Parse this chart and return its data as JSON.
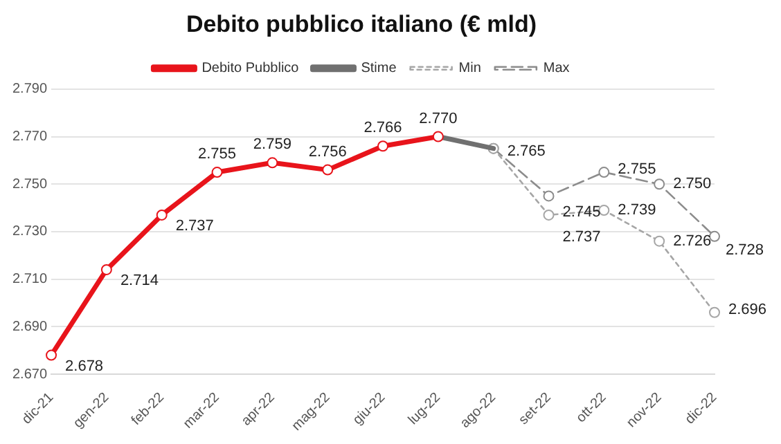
{
  "chart_data": {
    "type": "line",
    "title": "Debito pubblico italiano (€ mld)",
    "categories": [
      "dic-21",
      "gen-22",
      "feb-22",
      "mar-22",
      "apr-22",
      "mag-22",
      "giu-22",
      "lug-22",
      "ago-22",
      "set-22",
      "ott-22",
      "nov-22",
      "dic-22"
    ],
    "ylim": [
      2670,
      2790
    ],
    "yticks": [
      {
        "value": 2670,
        "label": "2.670"
      },
      {
        "value": 2690,
        "label": "2.690"
      },
      {
        "value": 2710,
        "label": "2.710"
      },
      {
        "value": 2730,
        "label": "2.730"
      },
      {
        "value": 2750,
        "label": "2.750"
      },
      {
        "value": 2770,
        "label": "2.770"
      },
      {
        "value": 2790,
        "label": "2.790"
      }
    ],
    "grid": "y",
    "legend": "top",
    "series": [
      {
        "name": "Debito Pubblico",
        "color": "#e8141b",
        "marker": "circle",
        "line_style": "solid",
        "values": [
          2678,
          2714,
          2737,
          2755,
          2759,
          2756,
          2766,
          2770,
          null,
          null,
          null,
          null,
          null
        ],
        "value_labels": [
          "2.678",
          "2.714",
          "2.737",
          "2.755",
          "2.759",
          "2.756",
          "2.766",
          "2.770",
          null,
          null,
          null,
          null,
          null
        ]
      },
      {
        "name": "Stime",
        "color": "#707070",
        "marker": "none",
        "line_style": "solid",
        "values": [
          null,
          null,
          null,
          null,
          null,
          null,
          null,
          2770,
          2765,
          null,
          null,
          null,
          null
        ],
        "value_labels": [
          null,
          null,
          null,
          null,
          null,
          null,
          null,
          null,
          "2.765",
          null,
          null,
          null,
          null
        ]
      },
      {
        "name": "Min",
        "color": "#a6a6a6",
        "marker": "circle",
        "line_style": "dotted",
        "values": [
          null,
          null,
          null,
          null,
          null,
          null,
          null,
          null,
          2765,
          2737,
          2739,
          2726,
          2696
        ],
        "value_labels": [
          null,
          null,
          null,
          null,
          null,
          null,
          null,
          null,
          null,
          "2.737",
          "2.739",
          "2.726",
          "2.696"
        ]
      },
      {
        "name": "Max",
        "color": "#8c8c8c",
        "marker": "circle",
        "line_style": "dashed",
        "values": [
          null,
          null,
          null,
          null,
          null,
          null,
          null,
          null,
          2765,
          2745,
          2755,
          2750,
          2728
        ],
        "value_labels": [
          null,
          null,
          null,
          null,
          null,
          null,
          null,
          null,
          null,
          "2.745",
          "2.755",
          "2.750",
          "2.728"
        ]
      }
    ]
  }
}
